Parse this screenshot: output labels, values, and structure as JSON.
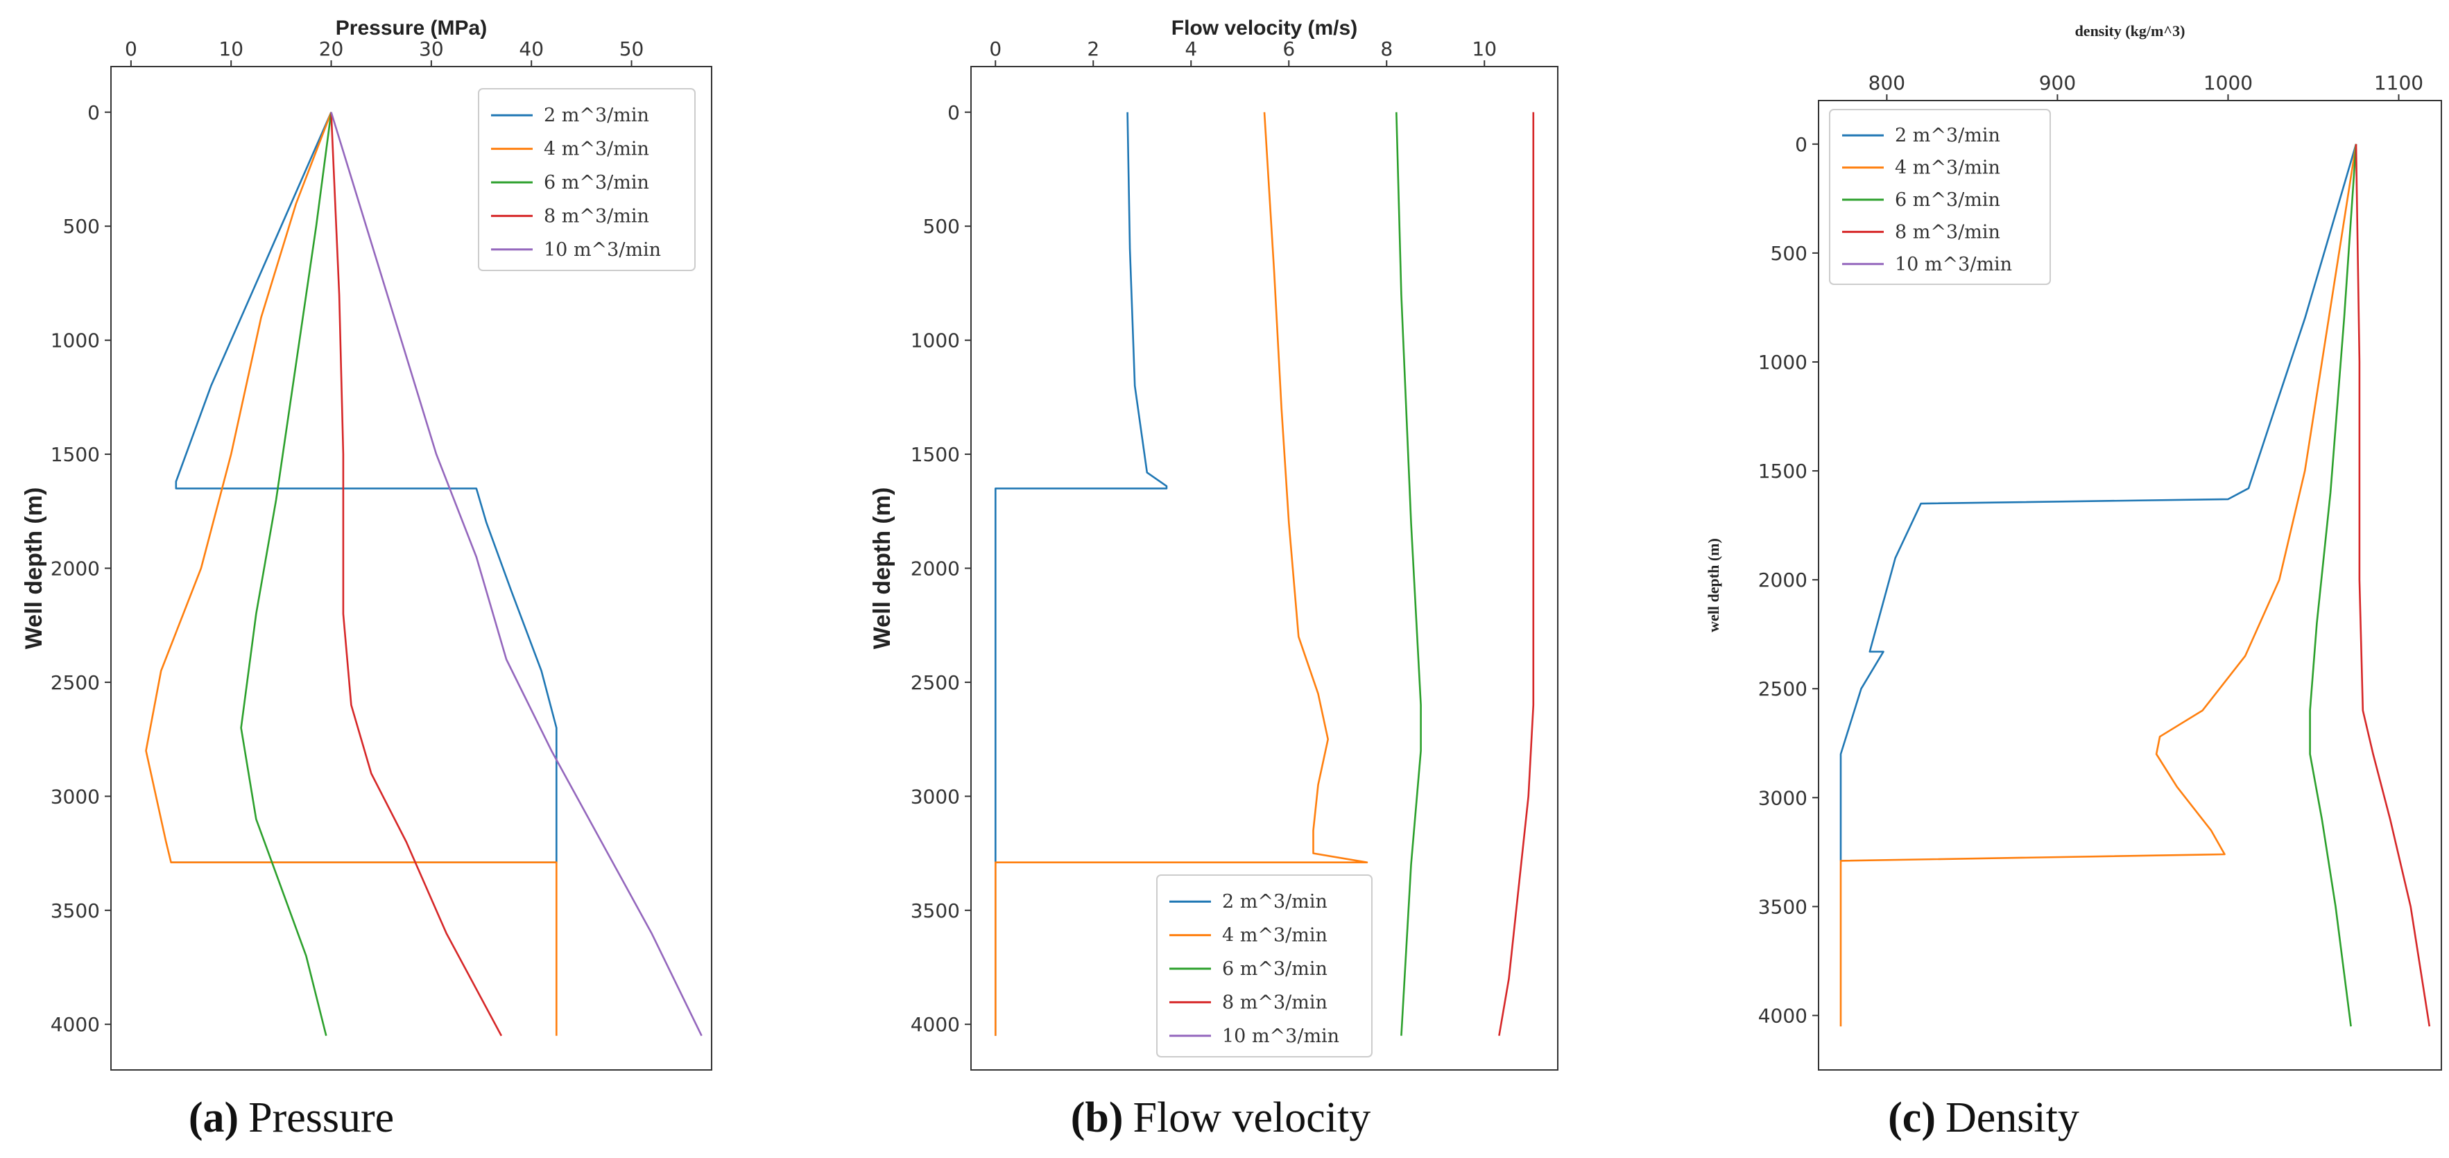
{
  "figure": {
    "panels": [
      {
        "letter": "(a)",
        "caption": "Pressure"
      },
      {
        "letter": "(b)",
        "caption": "Flow velocity"
      },
      {
        "letter": "(c)",
        "caption": "Density"
      }
    ]
  },
  "colors": {
    "2 m^3/min": "#1f77b4",
    "4 m^3/min": "#ff7f0e",
    "6 m^3/min": "#2ca02c",
    "8 m^3/min": "#d62728",
    "10 m^3/min": "#9467bd"
  },
  "chart_data": [
    {
      "type": "line",
      "title": "Pressure",
      "xlabel": "Pressure  (MPa)",
      "ylabel": "Well depth  (m)",
      "xlim": [
        -2,
        58
      ],
      "ylim": [
        4200,
        -200
      ],
      "xticks": [
        0,
        10,
        20,
        30,
        40,
        50
      ],
      "yticks": [
        0,
        500,
        1000,
        1500,
        2000,
        2500,
        3000,
        3500,
        4000
      ],
      "x_axis_position": "top",
      "legend_position": "top-right",
      "series": [
        {
          "name": "2 m^3/min",
          "legend": "2 m^3/min",
          "points": [
            [
              20,
              0
            ],
            [
              16,
              400
            ],
            [
              12,
              800
            ],
            [
              8,
              1200
            ],
            [
              4.5,
              1620
            ],
            [
              4.5,
              1650
            ],
            [
              34.5,
              1650
            ],
            [
              35.5,
              1800
            ],
            [
              38,
              2100
            ],
            [
              41,
              2450
            ],
            [
              42.5,
              2700
            ],
            [
              42.5,
              3290
            ],
            [
              4,
              3290
            ]
          ]
        },
        {
          "name": "4 m^3/min",
          "legend": "4 m^3/min",
          "points": [
            [
              20,
              0
            ],
            [
              16.5,
              400
            ],
            [
              13,
              900
            ],
            [
              10,
              1500
            ],
            [
              7,
              2000
            ],
            [
              3,
              2450
            ],
            [
              1.5,
              2800
            ],
            [
              3.5,
              3200
            ],
            [
              4,
              3290
            ],
            [
              42.5,
              3290
            ],
            [
              42.5,
              4050
            ]
          ]
        },
        {
          "name": "6 m^3/min",
          "legend": "6 m^3/min",
          "points": [
            [
              20,
              0
            ],
            [
              18.5,
              500
            ],
            [
              16.5,
              1100
            ],
            [
              14.5,
              1700
            ],
            [
              12.5,
              2200
            ],
            [
              11,
              2700
            ],
            [
              12.5,
              3100
            ],
            [
              15,
              3400
            ],
            [
              17.5,
              3700
            ],
            [
              19.5,
              4050
            ]
          ]
        },
        {
          "name": "8 m^3/min",
          "legend": "8 m^3/min",
          "points": [
            [
              20,
              0
            ],
            [
              20.8,
              800
            ],
            [
              21.2,
              1500
            ],
            [
              21.2,
              2200
            ],
            [
              22,
              2600
            ],
            [
              24,
              2900
            ],
            [
              27.5,
              3200
            ],
            [
              31.5,
              3600
            ],
            [
              37,
              4050
            ]
          ]
        },
        {
          "name": "10 m^3/min",
          "legend": "10 m^3/min",
          "points": [
            [
              20,
              0
            ],
            [
              23.5,
              500
            ],
            [
              27,
              1000
            ],
            [
              30.5,
              1500
            ],
            [
              34.5,
              1950
            ],
            [
              37.5,
              2400
            ],
            [
              42,
              2800
            ],
            [
              47,
              3200
            ],
            [
              52,
              3600
            ],
            [
              57,
              4050
            ]
          ]
        }
      ]
    },
    {
      "type": "line",
      "title": "Flow velocity",
      "xlabel": "Flow velocity  (m/s)",
      "ylabel": "Well depth  (m)",
      "xlim": [
        -0.5,
        11.5
      ],
      "ylim": [
        4200,
        -200
      ],
      "xticks": [
        0,
        2,
        4,
        6,
        8,
        10
      ],
      "yticks": [
        0,
        500,
        1000,
        1500,
        2000,
        2500,
        3000,
        3500,
        4000
      ],
      "x_axis_position": "top",
      "legend_position": "bottom-right",
      "series": [
        {
          "name": "2 m^3/min",
          "legend": "2 m^3/min",
          "points": [
            [
              2.7,
              0
            ],
            [
              2.75,
              600
            ],
            [
              2.85,
              1200
            ],
            [
              3.1,
              1580
            ],
            [
              3.5,
              1640
            ],
            [
              3.5,
              1650
            ],
            [
              0,
              1650
            ],
            [
              0,
              4050
            ]
          ]
        },
        {
          "name": "4 m^3/min",
          "legend": "4 m^3/min",
          "points": [
            [
              5.5,
              0
            ],
            [
              5.7,
              700
            ],
            [
              5.85,
              1300
            ],
            [
              6.0,
              1800
            ],
            [
              6.2,
              2300
            ],
            [
              6.6,
              2550
            ],
            [
              6.8,
              2750
            ],
            [
              6.6,
              2950
            ],
            [
              6.5,
              3150
            ],
            [
              6.5,
              3250
            ],
            [
              7.6,
              3290
            ],
            [
              0,
              3290
            ],
            [
              0,
              4050
            ]
          ]
        },
        {
          "name": "6 m^3/min",
          "legend": "6 m^3/min",
          "points": [
            [
              8.2,
              0
            ],
            [
              8.3,
              800
            ],
            [
              8.5,
              1800
            ],
            [
              8.7,
              2600
            ],
            [
              8.7,
              2800
            ],
            [
              8.5,
              3300
            ],
            [
              8.3,
              4050
            ]
          ]
        },
        {
          "name": "8 m^3/min",
          "legend": "8 m^3/min",
          "points": [
            [
              11.0,
              0
            ],
            [
              11.0,
              1500
            ],
            [
              11.0,
              2600
            ],
            [
              10.9,
              3000
            ],
            [
              10.7,
              3400
            ],
            [
              10.5,
              3800
            ],
            [
              10.3,
              4050
            ]
          ]
        },
        {
          "name": "10 m^3/min",
          "legend": "10 m^3/min",
          "points": []
        }
      ]
    },
    {
      "type": "line",
      "title": "Density",
      "xlabel": "density (kg/m^3)",
      "ylabel": "well depth (m)",
      "xlim": [
        760,
        1125
      ],
      "ylim": [
        4250,
        -200
      ],
      "xticks": [
        800,
        900,
        1000,
        1100
      ],
      "yticks": [
        0,
        500,
        1000,
        1500,
        2000,
        2500,
        3000,
        3500,
        4000
      ],
      "x_axis_position": "top",
      "legend_position": "top-left",
      "series": [
        {
          "name": "2 m^3/min",
          "legend": "2 m^3/min",
          "points": [
            [
              1075,
              0
            ],
            [
              1060,
              400
            ],
            [
              1045,
              800
            ],
            [
              1028,
              1200
            ],
            [
              1012,
              1580
            ],
            [
              1000,
              1630
            ],
            [
              820,
              1650
            ],
            [
              805,
              1900
            ],
            [
              790,
              2330
            ],
            [
              798,
              2330
            ],
            [
              785,
              2500
            ],
            [
              773,
              2800
            ],
            [
              773,
              3100
            ],
            [
              773,
              3290
            ]
          ]
        },
        {
          "name": "4 m^3/min",
          "legend": "4 m^3/min",
          "points": [
            [
              1075,
              0
            ],
            [
              1065,
              500
            ],
            [
              1055,
              1000
            ],
            [
              1045,
              1500
            ],
            [
              1030,
              2000
            ],
            [
              1010,
              2350
            ],
            [
              985,
              2600
            ],
            [
              960,
              2720
            ],
            [
              958,
              2800
            ],
            [
              970,
              2950
            ],
            [
              990,
              3150
            ],
            [
              998,
              3260
            ],
            [
              773,
              3290
            ],
            [
              773,
              4050
            ]
          ]
        },
        {
          "name": "6 m^3/min",
          "legend": "6 m^3/min",
          "points": [
            [
              1075,
              0
            ],
            [
              1068,
              800
            ],
            [
              1060,
              1600
            ],
            [
              1052,
              2200
            ],
            [
              1048,
              2600
            ],
            [
              1048,
              2800
            ],
            [
              1055,
              3100
            ],
            [
              1063,
              3500
            ],
            [
              1072,
              4050
            ]
          ]
        },
        {
          "name": "8 m^3/min",
          "legend": "8 m^3/min",
          "points": [
            [
              1075,
              0
            ],
            [
              1077,
              1000
            ],
            [
              1077,
              2000
            ],
            [
              1079,
              2600
            ],
            [
              1085,
              2800
            ],
            [
              1095,
              3100
            ],
            [
              1107,
              3500
            ],
            [
              1118,
              4050
            ]
          ]
        },
        {
          "name": "10 m^3/min",
          "legend": "10 m^3/min",
          "points": []
        }
      ]
    }
  ]
}
